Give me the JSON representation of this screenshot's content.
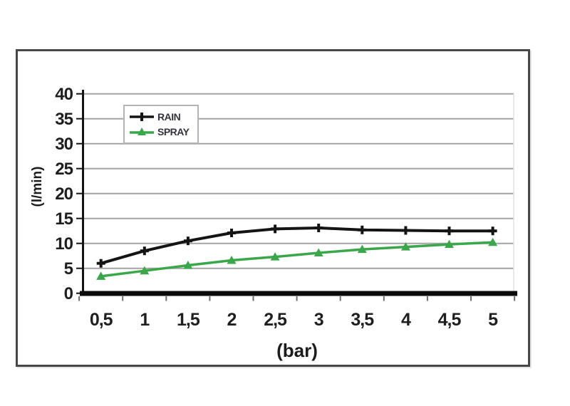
{
  "chart_data": {
    "type": "line",
    "x": [
      0.5,
      1,
      1.5,
      2,
      2.5,
      3,
      3.5,
      4,
      4.5,
      5
    ],
    "x_tick_labels": [
      "0,5",
      "1",
      "1,5",
      "2",
      "2,5",
      "3",
      "3,5",
      "4",
      "4,5",
      "5"
    ],
    "series": [
      {
        "name": "RAIN",
        "color": "#141414",
        "marker": "plus",
        "values": [
          6.0,
          8.5,
          10.5,
          12.1,
          12.9,
          13.1,
          12.7,
          12.6,
          12.5,
          12.5
        ]
      },
      {
        "name": "SPRAY",
        "color": "#3aa74a",
        "marker": "triangle",
        "values": [
          3.4,
          4.5,
          5.6,
          6.6,
          7.3,
          8.1,
          8.8,
          9.3,
          9.8,
          10.2
        ]
      }
    ],
    "xlabel": "(bar)",
    "ylabel": "(l/min)",
    "ylim": [
      0,
      40
    ],
    "yticks": [
      0,
      5,
      10,
      15,
      20,
      25,
      30,
      35,
      40
    ],
    "grid": true,
    "legend_position": "top-left-inside"
  },
  "colors": {
    "grid": "#a3a3a3",
    "axis": "#141414",
    "axis_bar": "#0c0c0c",
    "boundary_tick": "#6e6e6e",
    "plot_right_edge": "#e2e2e2",
    "text": "#1f1f1f"
  }
}
